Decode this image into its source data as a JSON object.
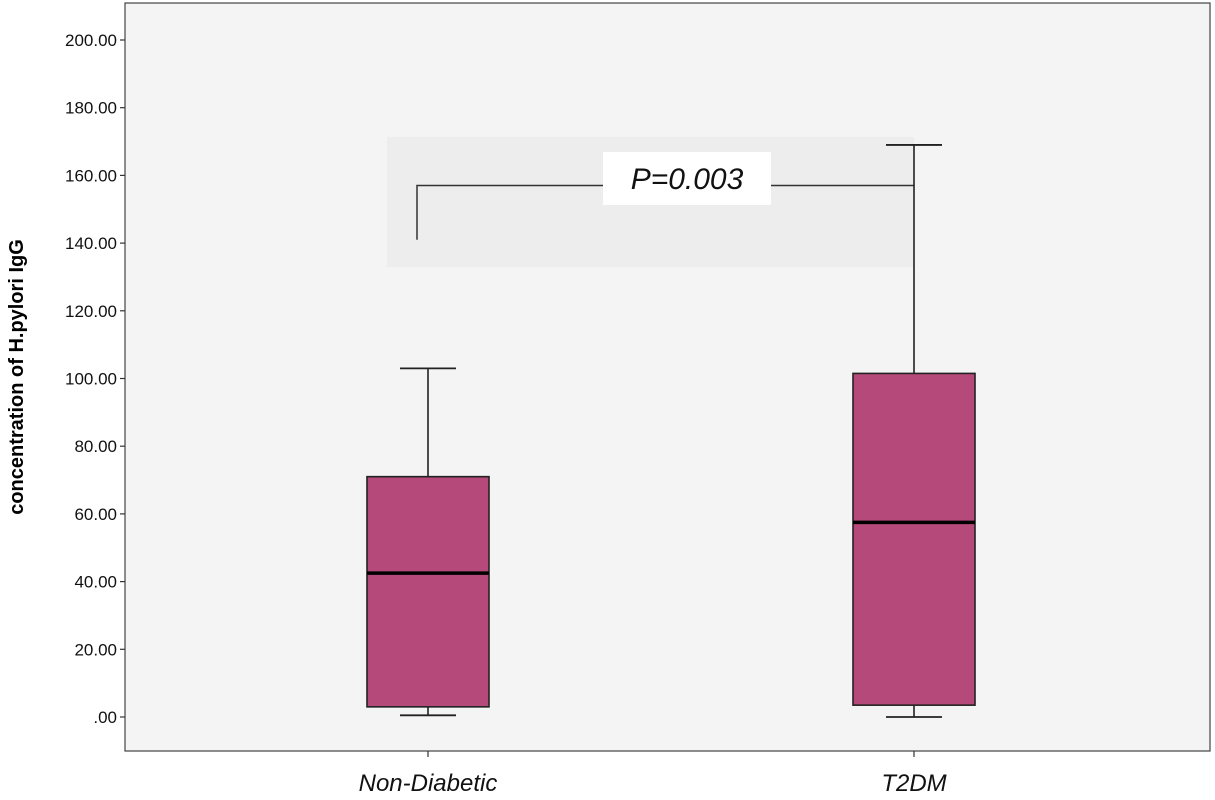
{
  "chart_data": {
    "type": "boxplot",
    "ylabel": "concentration of H.pylori IgG",
    "xlabel": "",
    "ylim": [
      -10,
      212
    ],
    "yticks": [
      0,
      20,
      40,
      60,
      80,
      100,
      120,
      140,
      160,
      180,
      200
    ],
    "ytick_labels": [
      ".00",
      "20.00",
      "40.00",
      "60.00",
      "80.00",
      "100.00",
      "120.00",
      "140.00",
      "160.00",
      "180.00",
      "200.00"
    ],
    "categories": [
      "Non-Diabetic",
      "T2DM"
    ],
    "boxes": [
      {
        "category": "Non-Diabetic",
        "min": 0.5,
        "q1": 3,
        "median": 42.5,
        "q3": 71,
        "max": 103
      },
      {
        "category": "T2DM",
        "min": 0,
        "q1": 3.5,
        "median": 57.5,
        "q3": 101.5,
        "max": 169
      }
    ],
    "annotation": {
      "text": "P=0.003",
      "bracket_y": 157,
      "left_leg_bottom": 141
    },
    "box_color": "#b5497a",
    "plot_background": "#f5f5f5",
    "grid": false
  }
}
